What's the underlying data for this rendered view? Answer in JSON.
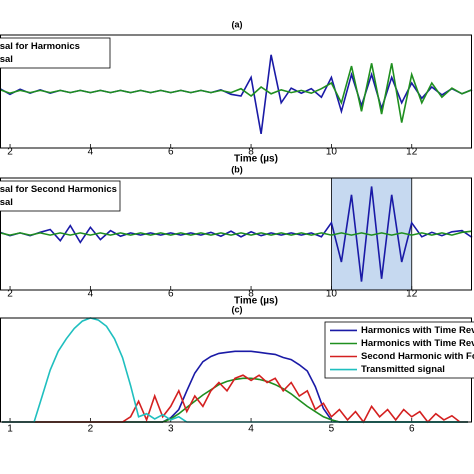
{
  "chart_data": [
    {
      "type": "line",
      "title": "(a)",
      "x_label": "Time (µs)",
      "x": [
        1.75,
        2,
        2.25,
        2.5,
        2.75,
        3,
        3.25,
        3.5,
        3.75,
        4,
        4.25,
        4.5,
        4.75,
        5,
        5.25,
        5.5,
        5.75,
        6,
        6.25,
        6.5,
        6.75,
        7,
        7.25,
        7.5,
        7.75,
        8,
        8.25,
        8.5,
        8.75,
        9,
        9.25,
        9.5,
        9.75,
        10,
        10.25,
        10.5,
        10.75,
        11,
        11.25,
        11.5,
        11.75,
        12,
        12.25,
        12.5,
        12.75,
        13,
        13.25,
        13.5
      ],
      "xlim": [
        1.75,
        13.5
      ],
      "xticks": [
        2,
        4,
        6,
        8,
        10,
        12
      ],
      "ylim": [
        -1,
        1
      ],
      "series": [
        {
          "name": "rsal for Harmonics",
          "color": "#1a1aa6",
          "values": [
            0.05,
            -0.05,
            0.04,
            -0.03,
            0.03,
            -0.03,
            0.02,
            -0.02,
            0.02,
            -0.02,
            0.02,
            -0.02,
            0.02,
            -0.02,
            0.02,
            -0.02,
            0.02,
            -0.02,
            0.02,
            -0.02,
            0.02,
            -0.02,
            0.03,
            -0.05,
            -0.08,
            0.25,
            -0.75,
            0.65,
            -0.2,
            0.06,
            -0.03,
            0.05,
            -0.1,
            0.25,
            -0.35,
            0.3,
            -0.25,
            0.3,
            -0.3,
            0.25,
            -0.2,
            0.15,
            -0.12,
            0.08,
            -0.06,
            0.05,
            -0.04,
            0.03
          ]
        },
        {
          "name": "rsal",
          "color": "#1f8f1f",
          "values": [
            0.03,
            -0.03,
            0.02,
            -0.02,
            0.02,
            -0.02,
            0.02,
            -0.02,
            0.02,
            -0.02,
            0.02,
            -0.02,
            0.02,
            -0.02,
            0.02,
            -0.02,
            0.02,
            -0.02,
            0.02,
            -0.02,
            0.02,
            -0.02,
            0.02,
            -0.02,
            0.05,
            -0.08,
            0.08,
            -0.04,
            0.03,
            -0.02,
            0.02,
            -0.03,
            0.05,
            0.15,
            -0.2,
            0.45,
            -0.35,
            0.5,
            -0.4,
            0.5,
            -0.55,
            0.3,
            -0.2,
            0.15,
            -0.1,
            0.06,
            -0.04,
            0.03
          ]
        }
      ]
    },
    {
      "type": "line",
      "title": "(b)",
      "x_label": "Time (µs)",
      "x": [
        1.75,
        2,
        2.25,
        2.5,
        2.75,
        3,
        3.25,
        3.5,
        3.75,
        4,
        4.25,
        4.5,
        4.75,
        5,
        5.25,
        5.5,
        5.75,
        6,
        6.25,
        6.5,
        6.75,
        7,
        7.25,
        7.5,
        7.75,
        8,
        8.25,
        8.5,
        8.75,
        9,
        9.25,
        9.5,
        9.75,
        10,
        10.25,
        10.5,
        10.75,
        11,
        11.25,
        11.5,
        11.75,
        12,
        12.25,
        12.5,
        12.75,
        13,
        13.25,
        13.5
      ],
      "xlim": [
        1.75,
        13.5
      ],
      "xticks": [
        2,
        4,
        6,
        8,
        10,
        12
      ],
      "ylim": [
        -1,
        1
      ],
      "highlight": {
        "xrange": [
          10,
          12
        ],
        "color": "#c6d9f0"
      },
      "series": [
        {
          "name": "rsal for Second Harmonics",
          "color": "#1a1aa6",
          "values": [
            0.03,
            -0.03,
            0.02,
            -0.03,
            0.03,
            0.08,
            -0.12,
            0.15,
            -0.15,
            0.12,
            -0.1,
            0.06,
            -0.04,
            0.02,
            -0.02,
            0.02,
            -0.02,
            0.02,
            -0.02,
            0.02,
            -0.02,
            0.03,
            -0.04,
            0.05,
            -0.05,
            0.04,
            -0.03,
            0.02,
            -0.02,
            0.02,
            -0.02,
            0.02,
            -0.05,
            0.2,
            -0.5,
            0.7,
            -0.85,
            0.85,
            -0.8,
            0.7,
            -0.5,
            0.2,
            -0.05,
            0.03,
            -0.03,
            0.04,
            0.06,
            -0.06
          ]
        },
        {
          "name": "rsal",
          "color": "#1f8f1f",
          "values": [
            0.02,
            -0.02,
            0.02,
            -0.02,
            0.02,
            -0.02,
            0.02,
            -0.02,
            0.02,
            -0.02,
            0.02,
            -0.02,
            0.02,
            -0.02,
            0.02,
            -0.02,
            0.02,
            -0.02,
            0.02,
            -0.02,
            0.02,
            -0.02,
            0.02,
            -0.02,
            0.02,
            -0.02,
            0.02,
            -0.02,
            0.02,
            -0.02,
            0.02,
            -0.02,
            0.02,
            -0.02,
            0.02,
            -0.02,
            0.02,
            -0.02,
            0.02,
            -0.02,
            0.02,
            -0.02,
            0.02,
            -0.02,
            0.02,
            -0.02,
            0.03,
            0.05
          ]
        }
      ]
    },
    {
      "type": "line",
      "title": "(c)",
      "x": [
        0.9,
        1,
        1.1,
        1.2,
        1.3,
        1.4,
        1.5,
        1.6,
        1.7,
        1.8,
        1.9,
        2,
        2.1,
        2.2,
        2.3,
        2.4,
        2.5,
        2.6,
        2.7,
        2.8,
        2.9,
        3,
        3.1,
        3.2,
        3.3,
        3.4,
        3.5,
        3.6,
        3.7,
        3.8,
        3.9,
        4,
        4.1,
        4.2,
        4.3,
        4.4,
        4.5,
        4.6,
        4.7,
        4.8,
        4.9,
        5,
        5.1,
        5.2,
        5.3,
        5.4,
        5.5,
        5.6,
        5.7,
        5.8,
        5.9,
        6,
        6.1,
        6.2,
        6.3,
        6.4,
        6.5,
        6.6,
        6.7
      ],
      "xlim": [
        0.875,
        6.75
      ],
      "xticks": [
        1,
        2,
        3,
        4,
        5,
        6
      ],
      "ylim": [
        0,
        1
      ],
      "series": [
        {
          "name": "Harmonics with Time Reversal",
          "color": "#1a1aa6",
          "values": [
            0,
            0,
            0,
            0,
            0,
            0,
            0,
            0,
            0,
            0,
            0,
            0,
            0,
            0,
            0,
            0,
            0,
            0,
            0,
            0,
            0,
            0.04,
            0.12,
            0.3,
            0.47,
            0.58,
            0.63,
            0.66,
            0.67,
            0.68,
            0.68,
            0.68,
            0.67,
            0.66,
            0.65,
            0.62,
            0.6,
            0.55,
            0.49,
            0.34,
            0.13,
            0.02,
            0,
            0,
            0,
            0,
            0,
            0,
            0,
            0,
            0,
            0,
            0,
            0,
            0,
            0,
            0,
            0,
            0
          ]
        },
        {
          "name": "Harmonics with Time Revers",
          "color": "#1f8f1f",
          "values": [
            0,
            0,
            0,
            0,
            0,
            0,
            0,
            0,
            0,
            0,
            0,
            0,
            0,
            0,
            0,
            0,
            0,
            0,
            0,
            0,
            0,
            0.03,
            0.08,
            0.14,
            0.2,
            0.26,
            0.31,
            0.36,
            0.39,
            0.41,
            0.42,
            0.42,
            0.41,
            0.39,
            0.36,
            0.32,
            0.27,
            0.21,
            0.15,
            0.1,
            0.05,
            0.02,
            0,
            0,
            0,
            0,
            0,
            0,
            0,
            0,
            0,
            0,
            0,
            0,
            0,
            0,
            0,
            0,
            0
          ]
        },
        {
          "name": "Second Harmonic with Focus",
          "color": "#d42020",
          "values": [
            0,
            0,
            0,
            0,
            0,
            0,
            0,
            0,
            0,
            0,
            0,
            0,
            0,
            0,
            0,
            0,
            0.05,
            0.2,
            0.02,
            0.25,
            0.05,
            0.15,
            0.3,
            0.1,
            0.25,
            0.15,
            0.3,
            0.38,
            0.3,
            0.42,
            0.45,
            0.4,
            0.45,
            0.38,
            0.42,
            0.3,
            0.38,
            0.25,
            0.3,
            0.12,
            0.18,
            0.05,
            0.12,
            0.02,
            0.1,
            0,
            0.15,
            0.05,
            0.12,
            0.02,
            0.12,
            0.05,
            0.1,
            0,
            0.08,
            0.02,
            0.06,
            0,
            0
          ]
        },
        {
          "name": "Transmitted signal",
          "color": "#1fbfbf",
          "values": [
            0,
            0,
            0,
            0,
            0,
            0.25,
            0.5,
            0.68,
            0.8,
            0.9,
            0.97,
            1,
            0.98,
            0.92,
            0.8,
            0.62,
            0.35,
            0.05,
            0.08,
            0.03,
            0.07,
            0.02,
            0.05,
            0,
            0,
            0,
            0,
            0,
            0,
            0,
            0,
            0,
            0,
            0,
            0,
            0,
            0,
            0,
            0,
            0,
            0,
            0,
            0,
            0,
            0,
            0,
            0,
            0,
            0,
            0,
            0,
            0,
            0,
            0,
            0,
            0,
            0,
            0,
            0
          ]
        }
      ]
    }
  ]
}
